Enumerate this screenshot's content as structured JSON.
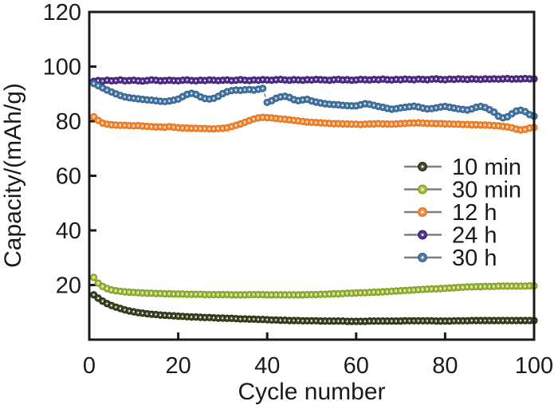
{
  "chart_data": {
    "type": "scatter",
    "title": "",
    "xlabel": "Cycle number",
    "ylabel": "Capacity/(mAh/g)",
    "xlim": [
      0,
      100
    ],
    "ylim": [
      0,
      120
    ],
    "xticks": [
      0,
      20,
      40,
      60,
      80,
      100
    ],
    "yticks": [
      20,
      40,
      60,
      80,
      100,
      120
    ],
    "grid": false,
    "legend_position": "middle-right",
    "x_cycles_start": 1,
    "x_cycles_step": 1,
    "series": [
      {
        "name": "10 min",
        "color": "#47542c",
        "edge_color": "#262e15",
        "values": [
          16.4,
          15.2,
          14.1,
          13.2,
          12.5,
          11.9,
          11.4,
          10.9,
          10.5,
          10.2,
          9.9,
          9.7,
          9.5,
          9.3,
          9.2,
          9.0,
          8.9,
          8.8,
          8.7,
          8.6,
          8.5,
          8.4,
          8.3,
          8.3,
          8.2,
          8.1,
          8.1,
          8.0,
          7.9,
          7.9,
          7.8,
          7.8,
          7.7,
          7.6,
          7.6,
          7.5,
          7.5,
          7.4,
          7.4,
          7.3,
          7.2,
          7.2,
          7.1,
          7.1,
          7.0,
          7.0,
          7.0,
          6.9,
          6.9,
          6.9,
          6.9,
          6.8,
          6.8,
          6.8,
          6.8,
          6.8,
          6.8,
          6.7,
          6.7,
          6.7,
          6.7,
          6.7,
          6.8,
          6.8,
          6.8,
          6.8,
          6.8,
          6.8,
          6.8,
          6.8,
          6.9,
          6.9,
          6.9,
          6.9,
          6.9,
          6.9,
          6.9,
          6.8,
          6.8,
          6.8,
          6.8,
          6.9,
          6.9,
          6.9,
          6.9,
          7.0,
          7.0,
          7.0,
          7.0,
          7.0,
          7.0,
          7.0,
          7.0,
          7.0,
          7.0,
          7.0,
          7.0,
          7.0,
          7.0,
          7.0
        ]
      },
      {
        "name": "30 min",
        "color": "#abc742",
        "edge_color": "#7f9a2c",
        "values": [
          22.8,
          20.7,
          19.5,
          18.7,
          18.2,
          17.9,
          17.7,
          17.5,
          17.4,
          17.3,
          17.2,
          17.1,
          17.0,
          17.0,
          16.9,
          16.9,
          16.8,
          16.8,
          16.7,
          16.7,
          16.7,
          16.6,
          16.6,
          16.6,
          16.6,
          16.5,
          16.5,
          16.5,
          16.5,
          16.5,
          16.5,
          16.4,
          16.4,
          16.4,
          16.4,
          16.5,
          16.5,
          16.5,
          16.5,
          16.4,
          16.4,
          16.4,
          16.4,
          16.4,
          16.4,
          16.4,
          16.4,
          16.4,
          16.5,
          16.5,
          16.5,
          16.6,
          16.6,
          16.7,
          16.8,
          16.8,
          16.9,
          17.0,
          17.0,
          17.1,
          17.2,
          17.2,
          17.3,
          17.4,
          17.4,
          17.5,
          17.6,
          17.7,
          17.8,
          17.9,
          18.0,
          18.1,
          18.2,
          18.3,
          18.4,
          18.5,
          18.6,
          18.6,
          18.7,
          18.8,
          18.9,
          19.0,
          19.1,
          19.2,
          19.3,
          19.3,
          19.4,
          19.4,
          19.5,
          19.5,
          19.5,
          19.6,
          19.6,
          19.6,
          19.6,
          19.6,
          19.6,
          19.6,
          19.7,
          19.7
        ]
      },
      {
        "name": "12 h",
        "color": "#f79447",
        "edge_color": "#e1731d",
        "values": [
          81.6,
          80.3,
          79.3,
          78.9,
          78.7,
          78.6,
          78.5,
          78.5,
          78.4,
          78.3,
          78.4,
          78.2,
          78.1,
          78.0,
          77.9,
          77.9,
          77.8,
          78.0,
          77.8,
          77.6,
          77.5,
          77.5,
          77.4,
          77.4,
          77.3,
          77.3,
          77.2,
          77.2,
          77.3,
          77.4,
          77.6,
          78.0,
          78.5,
          79.0,
          79.6,
          80.2,
          80.8,
          81.2,
          81.4,
          81.3,
          81.2,
          81.0,
          80.8,
          80.7,
          80.5,
          80.3,
          80.1,
          79.9,
          79.7,
          79.6,
          79.5,
          79.4,
          79.3,
          79.2,
          79.1,
          79.1,
          79.0,
          79.0,
          78.9,
          78.9,
          78.8,
          78.9,
          79.0,
          79.0,
          79.1,
          79.0,
          79.0,
          78.9,
          79.0,
          79.1,
          79.2,
          79.3,
          79.3,
          79.4,
          79.3,
          79.2,
          79.2,
          79.1,
          79.1,
          79.0,
          79.0,
          78.9,
          78.9,
          78.8,
          78.8,
          78.7,
          78.7,
          78.6,
          78.6,
          78.5,
          78.4,
          78.3,
          78.1,
          77.9,
          77.6,
          77.1,
          76.8,
          77.0,
          77.5,
          77.7
        ]
      },
      {
        "name": "24 h",
        "color": "#5a3596",
        "edge_color": "#3f2374",
        "values": [
          94.6,
          94.9,
          94.7,
          95.0,
          94.8,
          94.9,
          95.1,
          94.8,
          94.9,
          95.0,
          94.8,
          94.7,
          94.9,
          95.1,
          95.0,
          94.8,
          94.9,
          95.0,
          94.9,
          94.8,
          95.0,
          95.1,
          94.9,
          94.8,
          95.0,
          94.9,
          95.1,
          95.0,
          94.9,
          95.0,
          95.1,
          94.9,
          95.0,
          95.2,
          95.0,
          94.9,
          95.1,
          95.0,
          95.2,
          95.1,
          95.0,
          95.2,
          95.3,
          95.1,
          95.0,
          95.2,
          95.1,
          95.0,
          95.2,
          95.1,
          95.3,
          95.2,
          95.1,
          95.0,
          95.2,
          95.3,
          95.1,
          95.2,
          95.0,
          95.1,
          95.3,
          95.2,
          95.1,
          95.3,
          95.2,
          95.4,
          95.2,
          95.1,
          95.3,
          95.2,
          95.4,
          95.3,
          95.2,
          95.4,
          95.3,
          95.2,
          95.4,
          95.5,
          95.3,
          95.2,
          95.4,
          95.3,
          95.5,
          95.4,
          95.3,
          95.5,
          95.4,
          95.3,
          95.5,
          95.4,
          95.5,
          95.4,
          95.5,
          95.6,
          95.4,
          95.5,
          95.5,
          95.6,
          95.5,
          95.5
        ]
      },
      {
        "name": "30 h",
        "color": "#4e81ad",
        "edge_color": "#36638f",
        "break_after_cycle": 39,
        "values": [
          93.8,
          93.0,
          92.2,
          91.4,
          90.7,
          90.0,
          89.4,
          88.9,
          88.6,
          88.4,
          88.2,
          88.0,
          87.8,
          87.7,
          87.5,
          87.3,
          87.2,
          87.4,
          87.7,
          88.1,
          89.0,
          89.8,
          90.2,
          89.8,
          88.9,
          88.3,
          88.1,
          88.4,
          89.1,
          90.1,
          90.8,
          91.2,
          91.4,
          91.3,
          91.5,
          91.6,
          91.4,
          91.7,
          92.0,
          86.9,
          87.5,
          88.4,
          88.9,
          89.1,
          88.7,
          87.9,
          87.5,
          87.8,
          88.0,
          87.4,
          87.0,
          86.7,
          86.4,
          86.2,
          86.1,
          86.0,
          85.8,
          85.7,
          85.6,
          85.6,
          86.0,
          86.4,
          86.2,
          85.8,
          85.4,
          85.1,
          84.7,
          84.4,
          84.6,
          84.9,
          85.1,
          85.3,
          85.5,
          85.2,
          84.8,
          84.5,
          84.6,
          84.9,
          85.2,
          85.4,
          85.1,
          84.8,
          84.5,
          84.3,
          84.1,
          84.5,
          85.1,
          85.4,
          85.0,
          84.2,
          83.3,
          81.8,
          81.2,
          81.6,
          82.7,
          83.7,
          84.0,
          83.5,
          82.4,
          81.8
        ]
      }
    ],
    "legend_line_color": "#7f7f7f",
    "axis_color": "#1a1a1a"
  }
}
